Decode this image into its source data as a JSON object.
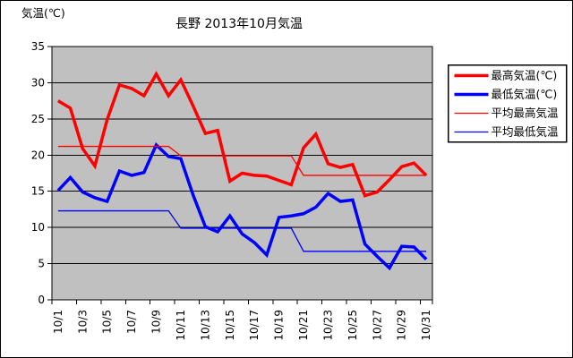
{
  "chart_data": {
    "type": "line",
    "title": "長野 2013年10月気温",
    "ylabel": "気温(℃)",
    "ylim": [
      0,
      35
    ],
    "ytick_step": 5,
    "grid": true,
    "plot_bg": "#C0C0C0",
    "grid_color": "#000000",
    "legend_position": "right",
    "n_points": 31,
    "y_tick_labels": [
      "0",
      "5",
      "10",
      "15",
      "20",
      "25",
      "30",
      "35"
    ],
    "x_tick_labels": [
      "10/1",
      "10/3",
      "10/5",
      "10/7",
      "10/9",
      "10/11",
      "10/13",
      "10/15",
      "10/17",
      "10/19",
      "10/21",
      "10/23",
      "10/25",
      "10/27",
      "10/29",
      "10/31"
    ],
    "series": [
      {
        "key": "max-temp",
        "name": "最高気温(℃)",
        "color": "#FF0000",
        "width": "thick",
        "values": [
          27.5,
          26.5,
          20.9,
          18.5,
          24.9,
          29.7,
          29.2,
          28.2,
          31.2,
          28.2,
          30.4,
          26.8,
          23.0,
          23.4,
          16.4,
          17.5,
          17.2,
          17.1,
          16.5,
          15.9,
          21.0,
          22.9,
          18.8,
          18.3,
          18.7,
          14.4,
          14.9,
          16.6,
          18.4,
          18.9,
          17.2
        ]
      },
      {
        "key": "min-temp",
        "name": "最低気温(℃)",
        "color": "#0000FF",
        "width": "thick",
        "values": [
          15.1,
          16.9,
          14.9,
          14.1,
          13.6,
          17.8,
          17.2,
          17.6,
          21.4,
          19.8,
          19.5,
          14.5,
          10.1,
          9.4,
          11.6,
          9.1,
          7.9,
          6.2,
          11.4,
          11.6,
          11.9,
          12.8,
          14.7,
          13.6,
          13.8,
          7.7,
          6.0,
          4.4,
          7.4,
          7.3,
          5.6
        ]
      },
      {
        "key": "avg-max-temp",
        "name": "平均最高気温",
        "color": "#FF0000",
        "width": "thin",
        "values": [
          21.2,
          21.2,
          21.2,
          21.2,
          21.2,
          21.2,
          21.2,
          21.2,
          21.2,
          21.2,
          19.9,
          19.9,
          19.9,
          19.9,
          19.9,
          19.9,
          19.9,
          19.9,
          19.9,
          19.9,
          17.2,
          17.2,
          17.2,
          17.2,
          17.2,
          17.2,
          17.2,
          17.2,
          17.2,
          17.2,
          17.2
        ]
      },
      {
        "key": "avg-min-temp",
        "name": "平均最低気温",
        "color": "#0000FF",
        "width": "thin",
        "values": [
          12.3,
          12.3,
          12.3,
          12.3,
          12.3,
          12.3,
          12.3,
          12.3,
          12.3,
          12.3,
          9.9,
          9.9,
          9.9,
          9.9,
          9.9,
          9.9,
          9.9,
          9.9,
          9.9,
          9.9,
          6.7,
          6.7,
          6.7,
          6.7,
          6.7,
          6.7,
          6.7,
          6.7,
          6.7,
          6.7,
          6.7
        ]
      }
    ]
  }
}
